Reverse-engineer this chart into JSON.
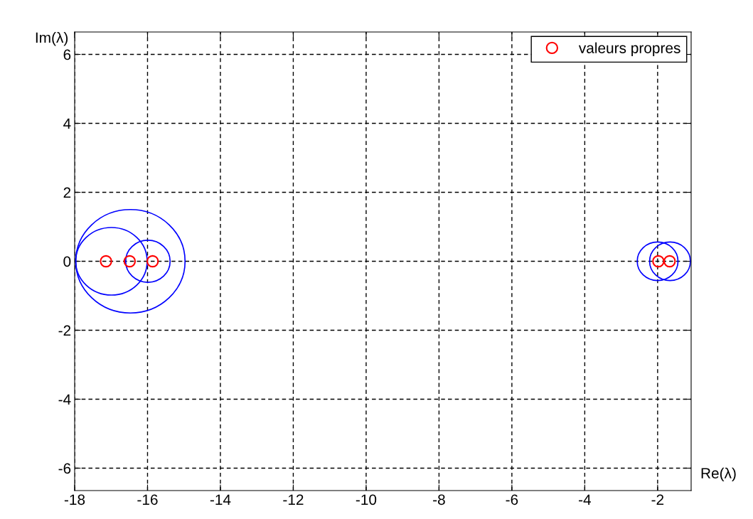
{
  "chart_data": {
    "type": "scatter",
    "xlabel": "Re(λ)",
    "ylabel": "Im(λ)",
    "xlim": [
      -18,
      -1.08
    ],
    "ylim": [
      -6.65,
      6.65
    ],
    "xticks": [
      -18,
      -16,
      -14,
      -12,
      -10,
      -8,
      -6,
      -4,
      -2
    ],
    "yticks": [
      -6,
      -4,
      -2,
      0,
      2,
      4,
      6
    ],
    "grid": true,
    "legend": "top right",
    "series": [
      {
        "name": "valeurs propres",
        "color": "#ff0000",
        "marker": "circle",
        "x": [
          -17.14,
          -16.49,
          -15.86,
          -1.98,
          -1.67
        ],
        "values": [
          0,
          0,
          0,
          0,
          0
        ]
      }
    ]
  }
}
